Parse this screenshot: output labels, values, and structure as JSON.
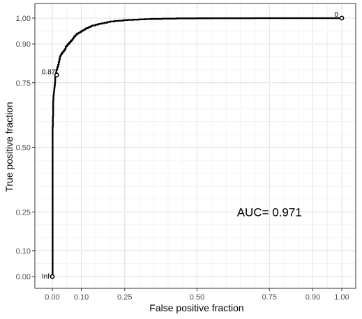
{
  "chart_data": {
    "type": "line",
    "title": "",
    "xlabel": "False positive fraction",
    "ylabel": "True positive fraction",
    "xlim": [
      0,
      1
    ],
    "ylim": [
      0,
      1
    ],
    "x_ticks": [
      0.0,
      0.1,
      0.25,
      0.5,
      0.75,
      0.9,
      1.0
    ],
    "x_tick_labels": [
      "0.00",
      "0.10",
      "0.25",
      "0.50",
      "0.75",
      "0.90",
      "1.00"
    ],
    "y_ticks": [
      0.0,
      0.1,
      0.25,
      0.5,
      0.75,
      0.9,
      1.0
    ],
    "y_tick_labels": [
      "0.00",
      "0.10",
      "0.25",
      "0.50",
      "0.75",
      "0.90",
      "1.00"
    ],
    "x_scale": "probit",
    "y_scale": "probit",
    "grid": true,
    "annotation": "AUC= 0.971",
    "annotation_pos": [
      0.75,
      0.25
    ],
    "cutoff_labels": [
      {
        "label": "Inf",
        "x": 0.0,
        "y": 0.0
      },
      {
        "label": "0.87",
        "x": 0.015,
        "y": 0.78
      },
      {
        "label": "0",
        "x": 1.0,
        "y": 1.0
      }
    ],
    "series": [
      {
        "x": [
          0.0,
          0.001,
          0.002,
          0.003,
          0.004,
          0.005,
          0.006,
          0.007,
          0.008,
          0.009,
          0.01,
          0.011,
          0.012,
          0.013,
          0.014,
          0.015,
          0.017,
          0.019,
          0.02,
          0.022,
          0.024,
          0.026,
          0.028,
          0.03,
          0.033,
          0.036,
          0.04,
          0.043,
          0.046,
          0.05,
          0.054,
          0.058,
          0.062,
          0.066,
          0.07,
          0.073,
          0.076,
          0.08,
          0.085,
          0.09,
          0.095,
          0.1,
          0.105,
          0.11,
          0.115,
          0.12,
          0.125,
          0.13,
          0.135,
          0.14,
          0.15,
          0.16,
          0.17,
          0.18,
          0.19,
          0.2,
          0.215,
          0.23,
          0.245,
          0.26,
          0.28,
          0.3,
          0.32,
          0.34,
          0.36,
          0.38,
          0.4,
          0.43,
          0.46,
          0.5,
          0.55,
          0.6,
          0.7,
          0.8,
          0.9,
          0.95,
          1.0
        ],
        "y": [
          0.0,
          0.58,
          0.62,
          0.68,
          0.7,
          0.71,
          0.72,
          0.73,
          0.74,
          0.75,
          0.77,
          0.78,
          0.78,
          0.79,
          0.8,
          0.8,
          0.81,
          0.81,
          0.82,
          0.83,
          0.84,
          0.85,
          0.855,
          0.86,
          0.865,
          0.87,
          0.875,
          0.88,
          0.89,
          0.895,
          0.9,
          0.905,
          0.91,
          0.915,
          0.92,
          0.925,
          0.93,
          0.935,
          0.94,
          0.943,
          0.946,
          0.95,
          0.953,
          0.956,
          0.96,
          0.962,
          0.965,
          0.967,
          0.97,
          0.972,
          0.975,
          0.978,
          0.98,
          0.982,
          0.985,
          0.987,
          0.989,
          0.99,
          0.992,
          0.993,
          0.994,
          0.995,
          0.996,
          0.997,
          0.997,
          0.998,
          0.998,
          0.999,
          0.999,
          0.9993,
          0.9995,
          0.9996,
          0.9997,
          0.9998,
          0.9999,
          0.99995,
          1.0
        ]
      }
    ]
  }
}
